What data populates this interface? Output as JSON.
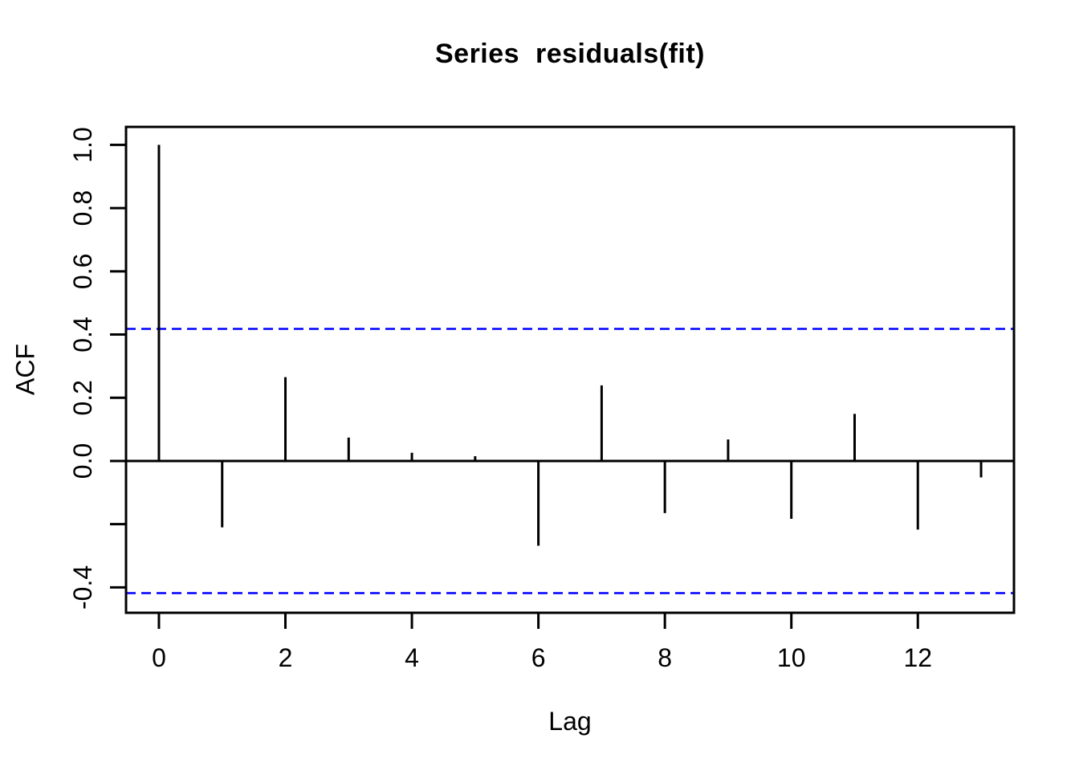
{
  "chart_data": {
    "type": "bar",
    "style": "stem",
    "title": "Series  residuals(fit)",
    "xlabel": "Lag",
    "ylabel": "ACF",
    "x": [
      0,
      1,
      2,
      3,
      4,
      5,
      6,
      7,
      8,
      9,
      10,
      11,
      12,
      13
    ],
    "values": [
      1.0,
      -0.21,
      0.265,
      0.074,
      0.026,
      0.015,
      -0.268,
      0.239,
      -0.165,
      0.068,
      -0.183,
      0.149,
      -0.217,
      -0.052
    ],
    "confidence_bounds": {
      "upper": 0.418,
      "lower": -0.418,
      "line_style": "dashed",
      "color": "#0000FF"
    },
    "x_ticks": [
      0,
      2,
      4,
      6,
      8,
      10,
      12
    ],
    "y_ticks": [
      {
        "value": 1.0,
        "label": "1.0"
      },
      {
        "value": 0.8,
        "label": "0.8"
      },
      {
        "value": 0.6,
        "label": "0.6"
      },
      {
        "value": 0.4,
        "label": "0.4"
      },
      {
        "value": 0.2,
        "label": "0.2"
      },
      {
        "value": 0.0,
        "label": "0.0"
      },
      {
        "value": -0.2,
        "label": ""
      },
      {
        "value": -0.4,
        "label": "-0.4"
      }
    ],
    "xlim": [
      -0.52,
      13.52
    ],
    "ylim": [
      -0.4803,
      1.0569
    ],
    "grid": false,
    "legend": null,
    "colors": {
      "stem": "#000000",
      "axis": "#000000",
      "text": "#000000",
      "confidence": "#0000FF",
      "background": "#FFFFFF"
    }
  }
}
